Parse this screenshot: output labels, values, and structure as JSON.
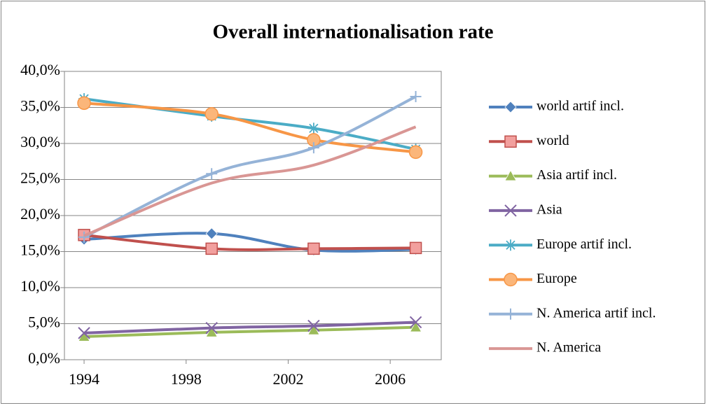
{
  "chart_data": {
    "type": "line",
    "title": "Overall internationalisation rate",
    "x": [
      1994,
      1999,
      2003,
      2007
    ],
    "xlim": [
      1993.23,
      2008
    ],
    "xticks": [
      1994,
      1998,
      2002,
      2006
    ],
    "ylim": [
      0,
      40
    ],
    "yticks": [
      {
        "value": 0,
        "label": "0,0%"
      },
      {
        "value": 5,
        "label": "5,0%"
      },
      {
        "value": 10,
        "label": "10,0%"
      },
      {
        "value": 15,
        "label": "15,0%"
      },
      {
        "value": 20,
        "label": "20,0%"
      },
      {
        "value": 25,
        "label": "25,0%"
      },
      {
        "value": 30,
        "label": "30,0%"
      },
      {
        "value": 35,
        "label": "35,0%"
      },
      {
        "value": 40,
        "label": "40,0%"
      }
    ],
    "grid": true,
    "legend": "right",
    "series": [
      {
        "name": "world artif incl.",
        "color": "#4f81bd",
        "marker": "diamond",
        "values": [
          16.7,
          17.5,
          15.2,
          15.3
        ]
      },
      {
        "name": "world",
        "color": "#c0504d",
        "marker": "square",
        "values": [
          17.3,
          15.4,
          15.4,
          15.5
        ]
      },
      {
        "name": "Asia artif incl.",
        "color": "#9bbb59",
        "marker": "triangle",
        "values": [
          3.2,
          3.8,
          4.1,
          4.5
        ]
      },
      {
        "name": "Asia",
        "color": "#8064a2",
        "marker": "x",
        "values": [
          3.7,
          4.4,
          4.7,
          5.2
        ]
      },
      {
        "name": "Europe artif incl.",
        "color": "#4bacc6",
        "marker": "star",
        "values": [
          36.2,
          33.8,
          32.1,
          29.2
        ]
      },
      {
        "name": "Europe",
        "color": "#f79646",
        "marker": "circle",
        "values": [
          35.6,
          34.1,
          30.5,
          28.8
        ]
      },
      {
        "name": "N. America artif incl.",
        "color": "#95b3d7",
        "marker": "plus",
        "values": [
          17.0,
          25.8,
          29.4,
          36.5
        ]
      },
      {
        "name": "N. America",
        "color": "#d99694",
        "marker": "none",
        "values": [
          17.2,
          24.5,
          27.0,
          32.3
        ]
      }
    ]
  }
}
